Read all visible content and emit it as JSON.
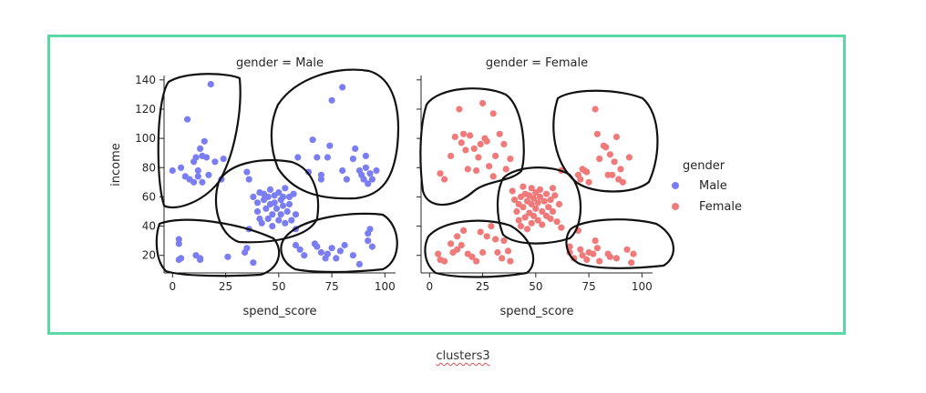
{
  "caption": "clusters3",
  "frame_color": "#5ad7a5",
  "chart_data": {
    "type": "scatter",
    "facet_variable": "gender",
    "xlabel": "spend_score",
    "ylabel": "income",
    "xticks": [
      0,
      25,
      50,
      75,
      100
    ],
    "yticks": [
      20,
      40,
      60,
      80,
      100,
      120,
      140
    ],
    "xlim": [
      -4,
      105
    ],
    "ylim": [
      8,
      143
    ],
    "legend": {
      "title": "gender",
      "placement": "right",
      "entries": [
        {
          "label": "Male",
          "color": "#7b7ef2"
        },
        {
          "label": "Female",
          "color": "#f07a7a"
        }
      ]
    },
    "panels": [
      {
        "title": "gender = Male",
        "series": "Male",
        "color": "#7b7ef2",
        "points": [
          [
            0,
            78
          ],
          [
            4,
            80
          ],
          [
            6,
            74
          ],
          [
            7,
            113
          ],
          [
            8,
            72
          ],
          [
            10,
            70
          ],
          [
            10,
            84
          ],
          [
            11,
            87
          ],
          [
            12,
            78
          ],
          [
            12,
            74
          ],
          [
            13,
            93
          ],
          [
            14,
            70
          ],
          [
            14,
            88
          ],
          [
            15,
            98
          ],
          [
            16,
            87
          ],
          [
            17,
            75
          ],
          [
            18,
            137
          ],
          [
            20,
            84
          ],
          [
            23,
            72
          ],
          [
            24,
            86
          ],
          [
            3,
            28
          ],
          [
            3,
            31
          ],
          [
            3,
            17
          ],
          [
            4,
            18
          ],
          [
            11,
            20
          ],
          [
            13,
            18
          ],
          [
            13,
            17
          ],
          [
            26,
            19
          ],
          [
            34,
            22
          ],
          [
            35,
            25
          ],
          [
            38,
            15
          ],
          [
            35,
            77
          ],
          [
            36,
            72
          ],
          [
            36,
            38
          ],
          [
            38,
            60
          ],
          [
            40,
            56
          ],
          [
            40,
            50
          ],
          [
            41,
            63
          ],
          [
            41,
            45
          ],
          [
            42,
            42
          ],
          [
            43,
            62
          ],
          [
            43,
            58
          ],
          [
            44,
            52
          ],
          [
            45,
            60
          ],
          [
            45,
            45
          ],
          [
            46,
            55
          ],
          [
            46,
            65
          ],
          [
            47,
            48
          ],
          [
            47,
            40
          ],
          [
            48,
            61
          ],
          [
            48,
            56
          ],
          [
            49,
            52
          ],
          [
            50,
            63
          ],
          [
            50,
            44
          ],
          [
            51,
            58
          ],
          [
            51,
            48
          ],
          [
            52,
            60
          ],
          [
            52,
            54
          ],
          [
            53,
            66
          ],
          [
            53,
            42
          ],
          [
            54,
            50
          ],
          [
            55,
            60
          ],
          [
            55,
            55
          ],
          [
            56,
            44
          ],
          [
            57,
            62
          ],
          [
            58,
            48
          ],
          [
            58,
            38
          ],
          [
            59,
            87
          ],
          [
            64,
            77
          ],
          [
            66,
            99
          ],
          [
            68,
            87
          ],
          [
            70,
            75
          ],
          [
            70,
            72
          ],
          [
            73,
            87
          ],
          [
            74,
            95
          ],
          [
            75,
            126
          ],
          [
            80,
            135
          ],
          [
            80,
            78
          ],
          [
            82,
            72
          ],
          [
            85,
            86
          ],
          [
            86,
            93
          ],
          [
            88,
            78
          ],
          [
            89,
            75
          ],
          [
            90,
            72
          ],
          [
            91,
            88
          ],
          [
            91,
            80
          ],
          [
            92,
            69
          ],
          [
            93,
            76
          ],
          [
            94,
            72
          ],
          [
            96,
            78
          ],
          [
            58,
            27
          ],
          [
            60,
            24
          ],
          [
            62,
            20
          ],
          [
            67,
            28
          ],
          [
            68,
            26
          ],
          [
            70,
            22
          ],
          [
            72,
            18
          ],
          [
            73,
            21
          ],
          [
            75,
            25
          ],
          [
            77,
            18
          ],
          [
            79,
            23
          ],
          [
            81,
            27
          ],
          [
            85,
            20
          ],
          [
            88,
            14
          ],
          [
            92,
            30
          ],
          [
            92,
            35
          ],
          [
            93,
            38
          ],
          [
            94,
            26
          ]
        ]
      },
      {
        "title": "gender = Female",
        "series": "Female",
        "color": "#f07a7a",
        "points": [
          [
            5,
            76
          ],
          [
            7,
            72
          ],
          [
            10,
            88
          ],
          [
            12,
            101
          ],
          [
            14,
            120
          ],
          [
            15,
            97
          ],
          [
            16,
            103
          ],
          [
            17,
            92
          ],
          [
            18,
            79
          ],
          [
            19,
            102
          ],
          [
            21,
            93
          ],
          [
            22,
            78
          ],
          [
            23,
            87
          ],
          [
            24,
            96
          ],
          [
            25,
            124
          ],
          [
            26,
            100
          ],
          [
            27,
            98
          ],
          [
            28,
            81
          ],
          [
            30,
            74
          ],
          [
            30,
            117
          ],
          [
            31,
            88
          ],
          [
            33,
            103
          ],
          [
            35,
            96
          ],
          [
            36,
            79
          ],
          [
            38,
            86
          ],
          [
            4,
            21
          ],
          [
            5,
            17
          ],
          [
            7,
            16
          ],
          [
            10,
            28
          ],
          [
            11,
            22
          ],
          [
            13,
            24
          ],
          [
            13,
            33
          ],
          [
            15,
            27
          ],
          [
            16,
            37
          ],
          [
            18,
            21
          ],
          [
            20,
            19
          ],
          [
            22,
            16
          ],
          [
            24,
            36
          ],
          [
            25,
            22
          ],
          [
            27,
            33
          ],
          [
            29,
            40
          ],
          [
            31,
            31
          ],
          [
            32,
            22
          ],
          [
            34,
            18
          ],
          [
            35,
            30
          ],
          [
            37,
            23
          ],
          [
            38,
            16
          ],
          [
            39,
            64
          ],
          [
            40,
            58
          ],
          [
            41,
            50
          ],
          [
            42,
            55
          ],
          [
            42,
            44
          ],
          [
            43,
            60
          ],
          [
            43,
            40
          ],
          [
            44,
            67
          ],
          [
            44,
            53
          ],
          [
            45,
            46
          ],
          [
            45,
            62
          ],
          [
            46,
            57
          ],
          [
            46,
            38
          ],
          [
            47,
            61
          ],
          [
            47,
            49
          ],
          [
            48,
            55
          ],
          [
            48,
            66
          ],
          [
            48,
            42
          ],
          [
            49,
            59
          ],
          [
            49,
            47
          ],
          [
            50,
            63
          ],
          [
            50,
            52
          ],
          [
            51,
            56
          ],
          [
            51,
            44
          ],
          [
            52,
            60
          ],
          [
            52,
            65
          ],
          [
            53,
            50
          ],
          [
            53,
            41
          ],
          [
            54,
            57
          ],
          [
            55,
            62
          ],
          [
            55,
            47
          ],
          [
            56,
            53
          ],
          [
            57,
            58
          ],
          [
            57,
            45
          ],
          [
            58,
            66
          ],
          [
            58,
            50
          ],
          [
            59,
            61
          ],
          [
            60,
            43
          ],
          [
            61,
            55
          ],
          [
            62,
            39
          ],
          [
            62,
            78
          ],
          [
            70,
            75
          ],
          [
            71,
            72
          ],
          [
            72,
            79
          ],
          [
            73,
            78
          ],
          [
            74,
            77
          ],
          [
            75,
            70
          ],
          [
            78,
            120
          ],
          [
            79,
            103
          ],
          [
            80,
            86
          ],
          [
            82,
            95
          ],
          [
            83,
            94
          ],
          [
            84,
            75
          ],
          [
            85,
            89
          ],
          [
            86,
            75
          ],
          [
            87,
            84
          ],
          [
            88,
            101
          ],
          [
            89,
            72
          ],
          [
            90,
            79
          ],
          [
            91,
            70
          ],
          [
            94,
            87
          ],
          [
            66,
            26
          ],
          [
            66,
            22
          ],
          [
            68,
            18
          ],
          [
            70,
            37
          ],
          [
            71,
            24
          ],
          [
            72,
            20
          ],
          [
            74,
            17
          ],
          [
            75,
            22
          ],
          [
            77,
            21
          ],
          [
            78,
            30
          ],
          [
            79,
            25
          ],
          [
            80,
            16
          ],
          [
            84,
            21
          ],
          [
            85,
            19
          ],
          [
            88,
            18
          ],
          [
            93,
            24
          ],
          [
            95,
            15
          ],
          [
            96,
            21
          ]
        ]
      }
    ]
  }
}
